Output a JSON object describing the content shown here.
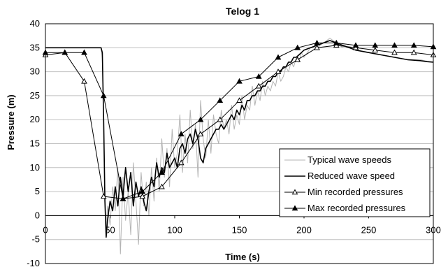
{
  "chart_data": {
    "type": "line",
    "title": "Telog 1",
    "xlabel": "Time (s)",
    "ylabel": "Pressure (m)",
    "xlim": [
      0,
      300
    ],
    "ylim": [
      -10,
      40
    ],
    "xticks": [
      0,
      50,
      100,
      150,
      200,
      250,
      300
    ],
    "yticks": [
      -10,
      -5,
      0,
      5,
      10,
      15,
      20,
      25,
      30,
      35,
      40
    ],
    "grid": "horizontal",
    "legend_position": "bottom-right",
    "series": [
      {
        "name": "Typical wave speeds",
        "style": "line",
        "color": "#b4b4b4",
        "x": [
          0,
          10,
          20,
          30,
          40,
          43,
          44,
          45,
          46,
          47,
          48,
          50,
          52,
          54,
          56,
          58,
          60,
          62,
          64,
          66,
          68,
          70,
          72,
          74,
          76,
          78,
          80,
          82,
          84,
          86,
          88,
          90,
          92,
          94,
          96,
          98,
          100,
          102,
          104,
          106,
          108,
          110,
          112,
          114,
          116,
          118,
          120,
          122,
          124,
          126,
          128,
          130,
          132,
          134,
          136,
          138,
          140,
          142,
          144,
          146,
          148,
          150,
          152,
          154,
          156,
          158,
          160,
          162,
          164,
          166,
          168,
          170,
          172,
          174,
          176,
          178,
          180,
          182,
          184,
          186,
          188,
          190,
          192,
          194,
          196,
          198,
          200,
          205,
          210,
          215,
          220,
          225,
          230,
          235,
          240,
          250,
          260,
          270,
          280,
          290,
          295,
          300
        ],
        "y": [
          35,
          35,
          35,
          35,
          35,
          35,
          33,
          20,
          5,
          -3,
          2,
          -2,
          6,
          1,
          10,
          -8,
          8,
          -1,
          5,
          -4,
          11,
          3,
          -6,
          9,
          2,
          7,
          0,
          10,
          3,
          12,
          5,
          16,
          8,
          14,
          6,
          18,
          10,
          13,
          21,
          9,
          17,
          11,
          22,
          14,
          19,
          8,
          24,
          16,
          12,
          20,
          13,
          21,
          17,
          15,
          22,
          18,
          20,
          17,
          23,
          18,
          21,
          19,
          25,
          20,
          23,
          22,
          27,
          23,
          26,
          24,
          28,
          25,
          27,
          26,
          28,
          27,
          30,
          28,
          29,
          31,
          30,
          32,
          31,
          33,
          32,
          34,
          33,
          35,
          35,
          36,
          37,
          36,
          35,
          35,
          34.5,
          34,
          33.5,
          33,
          32.5,
          32.5,
          32.2,
          32
        ]
      },
      {
        "name": "Reduced wave speed",
        "style": "line",
        "color": "#000000",
        "x": [
          0,
          10,
          20,
          30,
          40,
          43,
          44,
          45,
          46,
          47,
          48,
          50,
          52,
          54,
          56,
          58,
          60,
          62,
          64,
          66,
          68,
          70,
          72,
          74,
          76,
          78,
          80,
          82,
          84,
          86,
          88,
          90,
          92,
          94,
          96,
          98,
          100,
          102,
          104,
          106,
          108,
          110,
          112,
          114,
          116,
          118,
          120,
          122,
          124,
          126,
          128,
          130,
          132,
          134,
          136,
          138,
          140,
          142,
          144,
          146,
          148,
          150,
          152,
          154,
          156,
          158,
          160,
          162,
          164,
          166,
          168,
          170,
          172,
          174,
          176,
          178,
          180,
          182,
          184,
          186,
          188,
          190,
          192,
          194,
          196,
          198,
          200,
          205,
          210,
          215,
          220,
          225,
          230,
          235,
          240,
          250,
          260,
          270,
          280,
          290,
          295,
          300
        ],
        "y": [
          35,
          35,
          35,
          35,
          35,
          35,
          34,
          20,
          3,
          -4.5,
          -1,
          3,
          1,
          6,
          2,
          8,
          4,
          10,
          5,
          9,
          2,
          7,
          4,
          6,
          3,
          1,
          5,
          8,
          6,
          11,
          8,
          10,
          9,
          13,
          10,
          11,
          12,
          10,
          14,
          15,
          13,
          16,
          17,
          15,
          18,
          16,
          12,
          11,
          14,
          15,
          16,
          17,
          18,
          18,
          19,
          18,
          19,
          20,
          21,
          20,
          22,
          21,
          23,
          22,
          24,
          24,
          25,
          25,
          26,
          26,
          27,
          27,
          28,
          28,
          29,
          29,
          30,
          30,
          31,
          31,
          32,
          32,
          33,
          33,
          33.5,
          34,
          34.5,
          35,
          35.5,
          36,
          36.5,
          36,
          35.5,
          35,
          34.5,
          34,
          33.5,
          33,
          32.5,
          32.3,
          32.1,
          32
        ]
      },
      {
        "name": "Min recorded pressures",
        "style": "line-marker",
        "marker": "open-triangle",
        "color": "#000000",
        "x": [
          0,
          15,
          30,
          45,
          60,
          75,
          90,
          105,
          120,
          135,
          150,
          165,
          180,
          195,
          210,
          225,
          240,
          255,
          270,
          285,
          300
        ],
        "y": [
          33.5,
          34,
          28,
          4,
          3.5,
          4,
          6,
          11,
          17,
          20,
          24,
          27,
          30,
          32.5,
          35,
          35.5,
          35,
          34.5,
          34,
          34,
          33.5
        ]
      },
      {
        "name": "Max recorded pressures",
        "style": "line-marker",
        "marker": "filled-triangle",
        "color": "#000000",
        "x": [
          0,
          15,
          30,
          45,
          60,
          75,
          90,
          105,
          120,
          135,
          150,
          165,
          180,
          195,
          210,
          225,
          240,
          255,
          270,
          285,
          300
        ],
        "y": [
          34,
          34,
          34,
          25,
          3.5,
          5,
          9,
          17,
          20,
          24,
          28,
          29,
          33,
          35,
          36,
          36,
          35.5,
          35.5,
          35.5,
          35.5,
          35.2
        ]
      }
    ]
  }
}
